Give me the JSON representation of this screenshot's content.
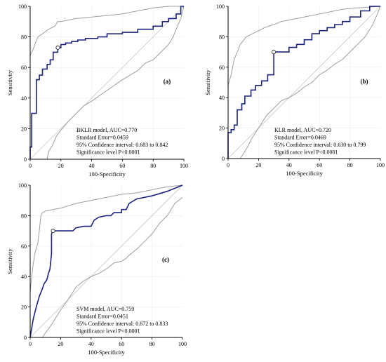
{
  "chart_data": [
    {
      "type": "line",
      "panel_label": "(a)",
      "xlabel": "100-Specificity",
      "ylabel": "Sensitivity",
      "xlim": [
        0,
        100
      ],
      "ylim": [
        0,
        100
      ],
      "xticks": [
        0,
        20,
        40,
        60,
        80,
        100
      ],
      "yticks": [
        0,
        20,
        40,
        60,
        80,
        100
      ],
      "info": [
        "BKLR model, AUC=0.770",
        "Standard Error=0.0459",
        "95% Confidence interval: 0.683 to 0.842",
        "Significance level P<0.0001"
      ],
      "colors": {
        "roc": "#1a237e",
        "ci": "#9e9e9e",
        "diagonal": "#c8c8c8"
      },
      "cutoff": [
        18,
        73
      ],
      "roc": [
        [
          0,
          0
        ],
        [
          0,
          8
        ],
        [
          1,
          8
        ],
        [
          1,
          30
        ],
        [
          4,
          30
        ],
        [
          4,
          52
        ],
        [
          6,
          52
        ],
        [
          6,
          55
        ],
        [
          8,
          55
        ],
        [
          8,
          59
        ],
        [
          11,
          59
        ],
        [
          11,
          62
        ],
        [
          13,
          62
        ],
        [
          13,
          65
        ],
        [
          15,
          65
        ],
        [
          15,
          70
        ],
        [
          18,
          70
        ],
        [
          18,
          73
        ],
        [
          20,
          73
        ],
        [
          20,
          75
        ],
        [
          23,
          75
        ],
        [
          23,
          76
        ],
        [
          27,
          76
        ],
        [
          27,
          77
        ],
        [
          31,
          77
        ],
        [
          31,
          78
        ],
        [
          36,
          78
        ],
        [
          36,
          79
        ],
        [
          44,
          79
        ],
        [
          44,
          80
        ],
        [
          50,
          80
        ],
        [
          50,
          82
        ],
        [
          60,
          82
        ],
        [
          60,
          83
        ],
        [
          70,
          83
        ],
        [
          70,
          85
        ],
        [
          80,
          85
        ],
        [
          80,
          87
        ],
        [
          86,
          87
        ],
        [
          86,
          90
        ],
        [
          90,
          90
        ],
        [
          90,
          92
        ],
        [
          95,
          92
        ],
        [
          95,
          95
        ],
        [
          98,
          95
        ],
        [
          98,
          100
        ],
        [
          100,
          100
        ]
      ],
      "ci_upper": [
        [
          0,
          68
        ],
        [
          2,
          72
        ],
        [
          3,
          75
        ],
        [
          5,
          80
        ],
        [
          8,
          82
        ],
        [
          12,
          85
        ],
        [
          16,
          87
        ],
        [
          18,
          90
        ],
        [
          20,
          90
        ],
        [
          30,
          92
        ],
        [
          40,
          93
        ],
        [
          50,
          94
        ],
        [
          60,
          95
        ],
        [
          70,
          97
        ],
        [
          80,
          99
        ],
        [
          90,
          100
        ],
        [
          100,
          100
        ]
      ],
      "ci_lower": [
        [
          11,
          0
        ],
        [
          12,
          5
        ],
        [
          15,
          10
        ],
        [
          17,
          15
        ],
        [
          20,
          19
        ],
        [
          25,
          25
        ],
        [
          30,
          30
        ],
        [
          35,
          35
        ],
        [
          40,
          38
        ],
        [
          50,
          45
        ],
        [
          60,
          52
        ],
        [
          70,
          58
        ],
        [
          75,
          63
        ],
        [
          80,
          65
        ],
        [
          85,
          70
        ],
        [
          90,
          75
        ],
        [
          93,
          80
        ],
        [
          95,
          85
        ],
        [
          98,
          92
        ],
        [
          100,
          100
        ]
      ]
    },
    {
      "type": "line",
      "panel_label": "(b)",
      "xlabel": "100-Specificity",
      "ylabel": "Sensitivity",
      "xlim": [
        0,
        100
      ],
      "ylim": [
        0,
        100
      ],
      "xticks": [
        0,
        20,
        40,
        60,
        80,
        100
      ],
      "yticks": [
        0,
        20,
        40,
        60,
        80,
        100
      ],
      "info": [
        "KLR model, AUC=0.720",
        "Standard Error=0.0469",
        "95% Confidence interval: 0.630 to 0.799",
        "Significance level P<0.0001"
      ],
      "colors": {
        "roc": "#1a237e",
        "ci": "#9e9e9e",
        "diagonal": "#c8c8c8"
      },
      "cutoff": [
        30,
        70
      ],
      "roc": [
        [
          0,
          0
        ],
        [
          0,
          17
        ],
        [
          2,
          17
        ],
        [
          2,
          19
        ],
        [
          4,
          19
        ],
        [
          4,
          22
        ],
        [
          6,
          22
        ],
        [
          6,
          32
        ],
        [
          9,
          32
        ],
        [
          9,
          36
        ],
        [
          11,
          36
        ],
        [
          11,
          41
        ],
        [
          15,
          41
        ],
        [
          15,
          45
        ],
        [
          18,
          45
        ],
        [
          18,
          48
        ],
        [
          22,
          48
        ],
        [
          22,
          51
        ],
        [
          26,
          51
        ],
        [
          26,
          55
        ],
        [
          30,
          55
        ],
        [
          30,
          70
        ],
        [
          40,
          70
        ],
        [
          40,
          73
        ],
        [
          45,
          73
        ],
        [
          45,
          75
        ],
        [
          50,
          75
        ],
        [
          50,
          78
        ],
        [
          55,
          78
        ],
        [
          55,
          82
        ],
        [
          60,
          82
        ],
        [
          60,
          84
        ],
        [
          65,
          84
        ],
        [
          65,
          86
        ],
        [
          70,
          86
        ],
        [
          70,
          88
        ],
        [
          75,
          88
        ],
        [
          75,
          90
        ],
        [
          80,
          90
        ],
        [
          80,
          93
        ],
        [
          87,
          93
        ],
        [
          87,
          97
        ],
        [
          93,
          97
        ],
        [
          93,
          100
        ],
        [
          100,
          100
        ]
      ],
      "ci_upper": [
        [
          0,
          48
        ],
        [
          2,
          55
        ],
        [
          4,
          65
        ],
        [
          6,
          70
        ],
        [
          8,
          75
        ],
        [
          12,
          80
        ],
        [
          18,
          83
        ],
        [
          24,
          86
        ],
        [
          30,
          88
        ],
        [
          35,
          90
        ],
        [
          45,
          92
        ],
        [
          55,
          94
        ],
        [
          65,
          96
        ],
        [
          75,
          98
        ],
        [
          85,
          99
        ],
        [
          100,
          100
        ]
      ],
      "ci_lower": [
        [
          8,
          0
        ],
        [
          10,
          3
        ],
        [
          13,
          8
        ],
        [
          16,
          14
        ],
        [
          20,
          20
        ],
        [
          25,
          28
        ],
        [
          30,
          33
        ],
        [
          35,
          38
        ],
        [
          40,
          40
        ],
        [
          45,
          43
        ],
        [
          50,
          47
        ],
        [
          55,
          50
        ],
        [
          60,
          55
        ],
        [
          65,
          58
        ],
        [
          70,
          62
        ],
        [
          75,
          65
        ],
        [
          80,
          70
        ],
        [
          85,
          75
        ],
        [
          90,
          80
        ],
        [
          95,
          88
        ],
        [
          98,
          95
        ],
        [
          100,
          100
        ]
      ]
    },
    {
      "type": "line",
      "panel_label": "(c)",
      "xlabel": "100-Specificity",
      "ylabel": "Sensitivity",
      "xlim": [
        0,
        100
      ],
      "ylim": [
        0,
        100
      ],
      "xticks": [
        0,
        20,
        40,
        60,
        80,
        100
      ],
      "yticks": [
        0,
        20,
        40,
        60,
        80,
        100
      ],
      "info": [
        "SVM model, AUC=0.759",
        "Standard Error=0.0451",
        "95% Confidence interval: 0.672 to 0.833",
        "Significance level P<0.0001"
      ],
      "colors": {
        "roc": "#1a237e",
        "ci": "#9e9e9e",
        "diagonal": "#c8c8c8"
      },
      "cutoff": [
        15,
        70
      ],
      "roc": [
        [
          0,
          0
        ],
        [
          2,
          12
        ],
        [
          4,
          20
        ],
        [
          6,
          27
        ],
        [
          8,
          32
        ],
        [
          9,
          35
        ],
        [
          11,
          38
        ],
        [
          12,
          42
        ],
        [
          13,
          45
        ],
        [
          14,
          55
        ],
        [
          14,
          68
        ],
        [
          15,
          70
        ],
        [
          20,
          70
        ],
        [
          28,
          70
        ],
        [
          30,
          72
        ],
        [
          35,
          73
        ],
        [
          40,
          73
        ],
        [
          42,
          77
        ],
        [
          45,
          79
        ],
        [
          50,
          80
        ],
        [
          53,
          80
        ],
        [
          55,
          82
        ],
        [
          60,
          82
        ],
        [
          60,
          84
        ],
        [
          63,
          84
        ],
        [
          65,
          88
        ],
        [
          70,
          91
        ],
        [
          80,
          93
        ],
        [
          90,
          96
        ],
        [
          100,
          100
        ]
      ],
      "ci_upper": [
        [
          0,
          30
        ],
        [
          1,
          40
        ],
        [
          2,
          48
        ],
        [
          3,
          55
        ],
        [
          5,
          62
        ],
        [
          6,
          70
        ],
        [
          7,
          80
        ],
        [
          8,
          82
        ],
        [
          10,
          83
        ],
        [
          15,
          84
        ],
        [
          20,
          85
        ],
        [
          30,
          88
        ],
        [
          40,
          90
        ],
        [
          50,
          92
        ],
        [
          60,
          94
        ],
        [
          70,
          95
        ],
        [
          80,
          97
        ],
        [
          90,
          99
        ],
        [
          100,
          100
        ]
      ],
      "ci_lower": [
        [
          8,
          0
        ],
        [
          10,
          3
        ],
        [
          13,
          7
        ],
        [
          15,
          10
        ],
        [
          20,
          18
        ],
        [
          25,
          25
        ],
        [
          30,
          33
        ],
        [
          35,
          37
        ],
        [
          40,
          40
        ],
        [
          45,
          42
        ],
        [
          50,
          45
        ],
        [
          55,
          49
        ],
        [
          60,
          50
        ],
        [
          63,
          52
        ],
        [
          65,
          54
        ],
        [
          70,
          58
        ],
        [
          75,
          63
        ],
        [
          80,
          68
        ],
        [
          85,
          75
        ],
        [
          90,
          80
        ],
        [
          95,
          88
        ],
        [
          100,
          92
        ]
      ]
    }
  ]
}
